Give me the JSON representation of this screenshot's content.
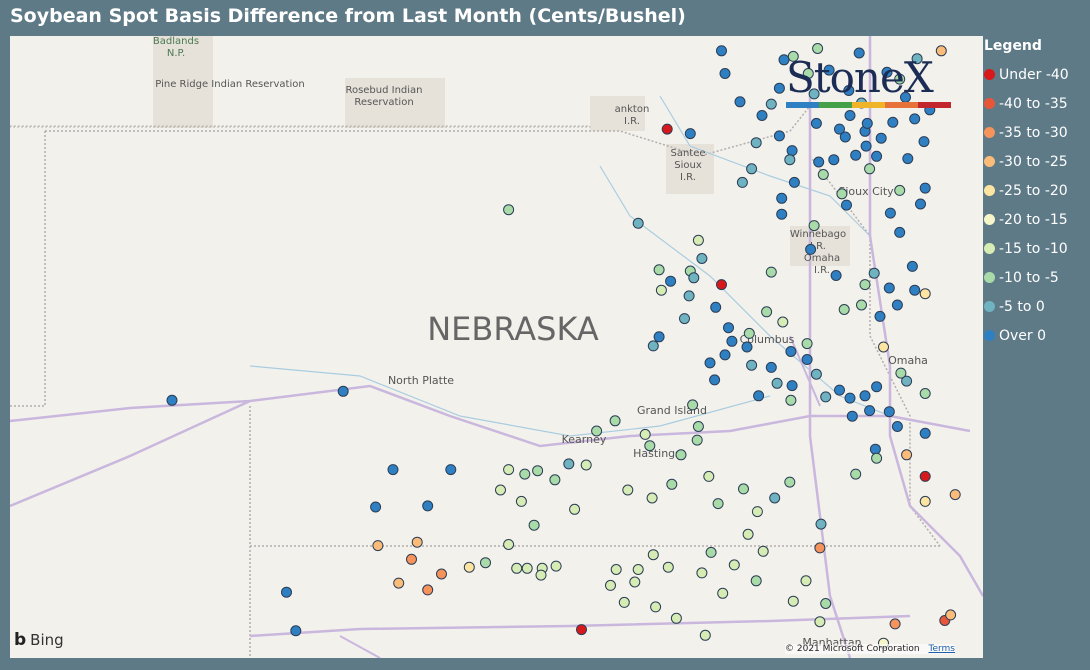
{
  "title": "Soybean Spot Basis Difference from Last Month (Cents/Bushel)",
  "legend": {
    "title": "Legend",
    "items": [
      {
        "label": "Under -40",
        "color": "#d7191c"
      },
      {
        "label": "-40 to -35",
        "color": "#e8563a"
      },
      {
        "label": "-35 to -30",
        "color": "#f5935b"
      },
      {
        "label": "-30 to -25",
        "color": "#fbbc79"
      },
      {
        "label": "-25 to -20",
        "color": "#fde4a1"
      },
      {
        "label": "-20 to -15",
        "color": "#f7f6c8"
      },
      {
        "label": "-15 to -10",
        "color": "#d6ecb4"
      },
      {
        "label": "-10 to -5",
        "color": "#a9dba8"
      },
      {
        "label": "-5 to 0",
        "color": "#6fb2c0"
      },
      {
        "label": "Over 0",
        "color": "#2f80c2"
      }
    ]
  },
  "logo": {
    "text": "StoneX",
    "bar_colors": [
      "#2f80c2",
      "#45a04a",
      "#f0b429",
      "#e8733a",
      "#c1272d"
    ]
  },
  "map": {
    "state_label": "NEBRASKA",
    "places": [
      {
        "name": "Badlands N.P.",
        "lines": [
          "Badlands",
          "N.P."
        ]
      },
      {
        "name": "Pine Ridge Indian Reservation",
        "lines": [
          "Pine Ridge Indian Reservation"
        ]
      },
      {
        "name": "Rosebud Indian Reservation",
        "lines": [
          "Rosebud Indian",
          "Reservation"
        ]
      },
      {
        "name": "Yankton I.R.",
        "lines": [
          "ankton",
          "I.R."
        ]
      },
      {
        "name": "Santee Sioux I.R.",
        "lines": [
          "Santee",
          "Sioux",
          "I.R."
        ]
      },
      {
        "name": "Sioux City",
        "lines": [
          "Sioux City"
        ]
      },
      {
        "name": "Winnebago I.R.",
        "lines": [
          "Winnebago",
          "I.R."
        ]
      },
      {
        "name": "Omaha I.R.",
        "lines": [
          "Omaha",
          "I.R."
        ]
      },
      {
        "name": "Columbus",
        "lines": [
          "Columbus"
        ]
      },
      {
        "name": "Omaha",
        "lines": [
          "Omaha"
        ]
      },
      {
        "name": "North Platte",
        "lines": [
          "North Platte"
        ]
      },
      {
        "name": "Grand Island",
        "lines": [
          "Grand Island"
        ]
      },
      {
        "name": "Kearney",
        "lines": [
          "Kearney"
        ]
      },
      {
        "name": "Hastings",
        "lines": [
          "Hastings"
        ]
      },
      {
        "name": "Manhattan",
        "lines": [
          "Manhattan"
        ]
      }
    ],
    "attribution": "© 2021 Microsoft Corporation",
    "terms": "Terms",
    "bing": "Bing"
  },
  "points": [
    {
      "cat": 9,
      "lat": 43.9,
      "lon": -96.9
    },
    {
      "cat": 9,
      "lat": 43.7,
      "lon": -96.87
    },
    {
      "cat": 9,
      "lat": 43.82,
      "lon": -96.36
    },
    {
      "cat": 8,
      "lat": 43.52,
      "lon": -96.1
    },
    {
      "cat": 0,
      "lat": 43.21,
      "lon": -97.37
    },
    {
      "cat": 9,
      "lat": 43.17,
      "lon": -97.17
    },
    {
      "cat": 8,
      "lat": 43.09,
      "lon": -96.6
    },
    {
      "cat": 9,
      "lat": 43.02,
      "lon": -96.29
    },
    {
      "cat": 8,
      "lat": 42.86,
      "lon": -96.64
    },
    {
      "cat": 7,
      "lat": 42.81,
      "lon": -96.02
    },
    {
      "cat": 8,
      "lat": 42.74,
      "lon": -96.72
    },
    {
      "cat": 7,
      "lat": 42.5,
      "lon": -98.74
    },
    {
      "cat": 8,
      "lat": 42.38,
      "lon": -97.62
    },
    {
      "cat": 9,
      "lat": 42.46,
      "lon": -96.38
    },
    {
      "cat": 7,
      "lat": 42.36,
      "lon": -96.1
    },
    {
      "cat": 9,
      "lat": 42.54,
      "lon": -95.82
    },
    {
      "cat": 6,
      "lat": 42.23,
      "lon": -97.1
    },
    {
      "cat": 9,
      "lat": 42.15,
      "lon": -96.13
    },
    {
      "cat": 7,
      "lat": 41.97,
      "lon": -97.44
    },
    {
      "cat": 7,
      "lat": 41.96,
      "lon": -97.17
    },
    {
      "cat": 0,
      "lat": 41.84,
      "lon": -96.9
    },
    {
      "cat": 6,
      "lat": 41.79,
      "lon": -97.42
    },
    {
      "cat": 8,
      "lat": 41.74,
      "lon": -97.18
    },
    {
      "cat": 7,
      "lat": 41.95,
      "lon": -96.47
    },
    {
      "cat": 9,
      "lat": 41.92,
      "lon": -95.91
    },
    {
      "cat": 9,
      "lat": 41.64,
      "lon": -96.95
    },
    {
      "cat": 8,
      "lat": 41.54,
      "lon": -97.22
    },
    {
      "cat": 7,
      "lat": 41.6,
      "lon": -96.51
    },
    {
      "cat": 6,
      "lat": 41.51,
      "lon": -96.37
    },
    {
      "cat": 9,
      "lat": 41.46,
      "lon": -96.84
    },
    {
      "cat": 9,
      "lat": 41.38,
      "lon": -97.44
    },
    {
      "cat": 8,
      "lat": 41.3,
      "lon": -97.49
    },
    {
      "cat": 9,
      "lat": 41.34,
      "lon": -96.81
    },
    {
      "cat": 9,
      "lat": 41.29,
      "lon": -96.68
    },
    {
      "cat": 7,
      "lat": 41.41,
      "lon": -96.66
    },
    {
      "cat": 9,
      "lat": 41.22,
      "lon": -96.87
    },
    {
      "cat": 9,
      "lat": 41.15,
      "lon": -97.0
    },
    {
      "cat": 8,
      "lat": 41.13,
      "lon": -96.64
    },
    {
      "cat": 9,
      "lat": 41.11,
      "lon": -96.47
    },
    {
      "cat": 9,
      "lat": 41.0,
      "lon": -96.96
    },
    {
      "cat": 8,
      "lat": 40.97,
      "lon": -96.42
    },
    {
      "cat": 9,
      "lat": 40.95,
      "lon": -96.29
    },
    {
      "cat": 9,
      "lat": 41.25,
      "lon": -96.3
    },
    {
      "cat": 7,
      "lat": 41.32,
      "lon": -96.16
    },
    {
      "cat": 9,
      "lat": 41.18,
      "lon": -96.16
    },
    {
      "cat": 8,
      "lat": 41.05,
      "lon": -96.08
    },
    {
      "cat": 9,
      "lat": 40.86,
      "lon": -96.58
    },
    {
      "cat": 7,
      "lat": 40.82,
      "lon": -96.3
    },
    {
      "cat": 8,
      "lat": 40.85,
      "lon": -96.0
    },
    {
      "cat": 9,
      "lat": 40.91,
      "lon": -95.88
    },
    {
      "cat": 9,
      "lat": 40.84,
      "lon": -95.79
    },
    {
      "cat": 9,
      "lat": 40.86,
      "lon": -95.66
    },
    {
      "cat": 9,
      "lat": 40.94,
      "lon": -95.56
    },
    {
      "cat": 9,
      "lat": 40.73,
      "lon": -95.62
    },
    {
      "cat": 9,
      "lat": 40.68,
      "lon": -95.77
    },
    {
      "cat": 9,
      "lat": 40.72,
      "lon": -95.45
    },
    {
      "cat": 9,
      "lat": 40.59,
      "lon": -95.38
    },
    {
      "cat": 9,
      "lat": 40.53,
      "lon": -95.14
    },
    {
      "cat": 9,
      "lat": 40.39,
      "lon": -95.57
    },
    {
      "cat": 8,
      "lat": 40.99,
      "lon": -95.3
    },
    {
      "cat": 7,
      "lat": 40.78,
      "lon": -97.15
    },
    {
      "cat": 7,
      "lat": 40.64,
      "lon": -97.82
    },
    {
      "cat": 7,
      "lat": 40.55,
      "lon": -97.98
    },
    {
      "cat": 6,
      "lat": 40.52,
      "lon": -97.56
    },
    {
      "cat": 7,
      "lat": 40.59,
      "lon": -97.1
    },
    {
      "cat": 7,
      "lat": 40.47,
      "lon": -97.11
    },
    {
      "cat": 7,
      "lat": 40.42,
      "lon": -97.52
    },
    {
      "cat": 7,
      "lat": 40.2,
      "lon": -98.49
    },
    {
      "cat": 7,
      "lat": 40.12,
      "lon": -98.34
    },
    {
      "cat": 6,
      "lat": 40.25,
      "lon": -98.07
    },
    {
      "cat": 6,
      "lat": 40.21,
      "lon": -98.74
    },
    {
      "cat": 7,
      "lat": 40.17,
      "lon": -98.6
    },
    {
      "cat": 6,
      "lat": 40.03,
      "lon": -98.81
    },
    {
      "cat": 6,
      "lat": 39.93,
      "lon": -98.63
    },
    {
      "cat": 7,
      "lat": 39.72,
      "lon": -98.52
    },
    {
      "cat": 6,
      "lat": 39.86,
      "lon": -98.17
    },
    {
      "cat": 6,
      "lat": 40.03,
      "lon": -97.71
    },
    {
      "cat": 6,
      "lat": 39.96,
      "lon": -97.5
    },
    {
      "cat": 7,
      "lat": 40.08,
      "lon": -97.33
    },
    {
      "cat": 6,
      "lat": 40.15,
      "lon": -97.01
    },
    {
      "cat": 7,
      "lat": 40.04,
      "lon": -96.71
    },
    {
      "cat": 7,
      "lat": 40.34,
      "lon": -97.25
    },
    {
      "cat": 7,
      "lat": 39.91,
      "lon": -96.93
    },
    {
      "cat": 6,
      "lat": 39.84,
      "lon": -96.59
    },
    {
      "cat": 8,
      "lat": 39.96,
      "lon": -96.44
    },
    {
      "cat": 7,
      "lat": 40.1,
      "lon": -96.31
    },
    {
      "cat": 8,
      "lat": 39.73,
      "lon": -96.04
    },
    {
      "cat": 6,
      "lat": 39.64,
      "lon": -96.67
    },
    {
      "cat": 6,
      "lat": 39.49,
      "lon": -96.54
    },
    {
      "cat": 7,
      "lat": 39.48,
      "lon": -96.99
    },
    {
      "cat": 6,
      "lat": 39.37,
      "lon": -96.79
    },
    {
      "cat": 6,
      "lat": 39.3,
      "lon": -97.07
    },
    {
      "cat": 6,
      "lat": 39.35,
      "lon": -97.36
    },
    {
      "cat": 6,
      "lat": 39.46,
      "lon": -97.49
    },
    {
      "cat": 6,
      "lat": 39.33,
      "lon": -97.62
    },
    {
      "cat": 6,
      "lat": 39.33,
      "lon": -97.81
    },
    {
      "cat": 6,
      "lat": 39.22,
      "lon": -97.65
    },
    {
      "cat": 6,
      "lat": 39.19,
      "lon": -97.86
    },
    {
      "cat": 6,
      "lat": 39.04,
      "lon": -97.74
    },
    {
      "cat": 6,
      "lat": 39.0,
      "lon": -97.47
    },
    {
      "cat": 6,
      "lat": 38.9,
      "lon": -97.29
    },
    {
      "cat": 6,
      "lat": 38.75,
      "lon": -97.04
    },
    {
      "cat": 6,
      "lat": 39.12,
      "lon": -96.89
    },
    {
      "cat": 7,
      "lat": 39.23,
      "lon": -96.6
    },
    {
      "cat": 6,
      "lat": 39.05,
      "lon": -96.28
    },
    {
      "cat": 6,
      "lat": 39.23,
      "lon": -96.17
    },
    {
      "cat": 7,
      "lat": 39.03,
      "lon": -96.0
    },
    {
      "cat": 6,
      "lat": 38.87,
      "lon": -96.05
    },
    {
      "cat": 6,
      "lat": 39.36,
      "lon": -98.33
    },
    {
      "cat": 6,
      "lat": 39.34,
      "lon": -98.45
    },
    {
      "cat": 6,
      "lat": 39.34,
      "lon": -98.58
    },
    {
      "cat": 6,
      "lat": 39.34,
      "lon": -98.67
    },
    {
      "cat": 6,
      "lat": 39.28,
      "lon": -98.46
    },
    {
      "cat": 6,
      "lat": 39.55,
      "lon": -98.74
    },
    {
      "cat": 7,
      "lat": 39.39,
      "lon": -98.94
    },
    {
      "cat": 2,
      "lat": 38.85,
      "lon": -95.4
    },
    {
      "cat": 5,
      "lat": 38.68,
      "lon": -95.5
    },
    {
      "cat": 2,
      "lat": 39.52,
      "lon": -96.05
    },
    {
      "cat": 1,
      "lat": 38.88,
      "lon": -94.97
    },
    {
      "cat": 3,
      "lat": 38.93,
      "lon": -94.92
    },
    {
      "cat": 0,
      "lat": 40.15,
      "lon": -95.14
    },
    {
      "cat": 3,
      "lat": 39.54,
      "lon": -99.87
    },
    {
      "cat": 3,
      "lat": 39.57,
      "lon": -99.53
    },
    {
      "cat": 2,
      "lat": 39.42,
      "lon": -99.58
    },
    {
      "cat": 2,
      "lat": 39.29,
      "lon": -99.32
    },
    {
      "cat": 3,
      "lat": 39.21,
      "lon": -99.69
    },
    {
      "cat": 2,
      "lat": 39.15,
      "lon": -99.44
    },
    {
      "cat": 4,
      "lat": 39.35,
      "lon": -99.08
    },
    {
      "cat": 9,
      "lat": 39.89,
      "lon": -99.44
    },
    {
      "cat": 9,
      "lat": 39.13,
      "lon": -100.66
    },
    {
      "cat": 9,
      "lat": 39.88,
      "lon": -99.89
    },
    {
      "cat": 9,
      "lat": 40.21,
      "lon": -99.74
    },
    {
      "cat": 9,
      "lat": 40.21,
      "lon": -99.24
    },
    {
      "cat": 8,
      "lat": 40.26,
      "lon": -98.22
    },
    {
      "cat": 9,
      "lat": 40.9,
      "lon": -100.17
    },
    {
      "cat": 9,
      "lat": 40.82,
      "lon": -101.65
    },
    {
      "cat": 9,
      "lat": 38.79,
      "lon": -100.58
    },
    {
      "cat": 0,
      "lat": 38.8,
      "lon": -98.11
    },
    {
      "cat": 3,
      "lat": 39.99,
      "lon": -94.88
    },
    {
      "cat": 4,
      "lat": 39.93,
      "lon": -95.14
    },
    {
      "cat": 3,
      "lat": 40.34,
      "lon": -95.3
    },
    {
      "cat": 7,
      "lat": 40.31,
      "lon": -95.56
    },
    {
      "cat": 7,
      "lat": 40.17,
      "lon": -95.74
    },
    {
      "cat": 4,
      "lat": 41.76,
      "lon": -95.14
    },
    {
      "cat": 4,
      "lat": 41.29,
      "lon": -95.5
    },
    {
      "cat": 7,
      "lat": 41.06,
      "lon": -95.35
    },
    {
      "cat": 7,
      "lat": 40.88,
      "lon": -95.14
    },
    {
      "cat": 9,
      "lat": 41.56,
      "lon": -95.53
    },
    {
      "cat": 9,
      "lat": 41.66,
      "lon": -95.38
    },
    {
      "cat": 9,
      "lat": 41.79,
      "lon": -95.23
    },
    {
      "cat": 9,
      "lat": 42.0,
      "lon": -95.25
    },
    {
      "cat": 9,
      "lat": 41.81,
      "lon": -95.45
    },
    {
      "cat": 8,
      "lat": 41.94,
      "lon": -95.58
    },
    {
      "cat": 7,
      "lat": 41.84,
      "lon": -95.66
    },
    {
      "cat": 7,
      "lat": 41.66,
      "lon": -95.69
    },
    {
      "cat": 7,
      "lat": 41.62,
      "lon": -95.84
    },
    {
      "cat": 9,
      "lat": 42.3,
      "lon": -95.36
    },
    {
      "cat": 9,
      "lat": 42.47,
      "lon": -95.44
    },
    {
      "cat": 9,
      "lat": 42.55,
      "lon": -95.18
    },
    {
      "cat": 7,
      "lat": 42.67,
      "lon": -95.36
    },
    {
      "cat": 9,
      "lat": 42.69,
      "lon": -95.14
    },
    {
      "cat": 7,
      "lat": 42.86,
      "lon": -95.62
    },
    {
      "cat": 9,
      "lat": 42.95,
      "lon": -95.29
    },
    {
      "cat": 9,
      "lat": 43.1,
      "lon": -95.15
    },
    {
      "cat": 9,
      "lat": 43.3,
      "lon": -95.23
    },
    {
      "cat": 9,
      "lat": 43.38,
      "lon": -95.1
    },
    {
      "cat": 9,
      "lat": 43.49,
      "lon": -95.31
    },
    {
      "cat": 9,
      "lat": 43.27,
      "lon": -95.42
    },
    {
      "cat": 9,
      "lat": 43.19,
      "lon": -95.66
    },
    {
      "cat": 9,
      "lat": 43.13,
      "lon": -95.52
    },
    {
      "cat": 9,
      "lat": 42.98,
      "lon": -95.74
    },
    {
      "cat": 9,
      "lat": 42.94,
      "lon": -95.93
    },
    {
      "cat": 9,
      "lat": 42.97,
      "lon": -95.56
    },
    {
      "cat": 9,
      "lat": 43.21,
      "lon": -95.88
    },
    {
      "cat": 9,
      "lat": 43.26,
      "lon": -96.08
    },
    {
      "cat": 9,
      "lat": 43.33,
      "lon": -95.79
    },
    {
      "cat": 8,
      "lat": 43.44,
      "lon": -95.69
    },
    {
      "cat": 9,
      "lat": 43.55,
      "lon": -95.8
    },
    {
      "cat": 9,
      "lat": 43.73,
      "lon": -95.97
    },
    {
      "cat": 9,
      "lat": 43.88,
      "lon": -95.71
    },
    {
      "cat": 9,
      "lat": 43.71,
      "lon": -95.47
    },
    {
      "cat": 7,
      "lat": 43.65,
      "lon": -95.36
    },
    {
      "cat": 8,
      "lat": 43.83,
      "lon": -95.21
    },
    {
      "cat": 9,
      "lat": 43.57,
      "lon": -96.4
    },
    {
      "cat": 8,
      "lat": 43.43,
      "lon": -96.47
    },
    {
      "cat": 7,
      "lat": 43.85,
      "lon": -96.28
    },
    {
      "cat": 7,
      "lat": 43.92,
      "lon": -96.07
    },
    {
      "cat": 7,
      "lat": 43.7,
      "lon": -96.15
    },
    {
      "cat": 9,
      "lat": 43.45,
      "lon": -96.74
    },
    {
      "cat": 9,
      "lat": 43.33,
      "lon": -96.55
    },
    {
      "cat": 9,
      "lat": 43.15,
      "lon": -96.4
    },
    {
      "cat": 8,
      "lat": 42.94,
      "lon": -96.31
    },
    {
      "cat": 9,
      "lat": 42.92,
      "lon": -96.06
    },
    {
      "cat": 9,
      "lat": 42.74,
      "lon": -96.27
    },
    {
      "cat": 7,
      "lat": 42.64,
      "lon": -95.86
    },
    {
      "cat": 9,
      "lat": 42.6,
      "lon": -96.38
    },
    {
      "cat": 9,
      "lat": 43.26,
      "lon": -95.64
    },
    {
      "cat": 9,
      "lat": 43.14,
      "lon": -95.83
    },
    {
      "cat": 9,
      "lat": 43.06,
      "lon": -95.65
    },
    {
      "cat": 3,
      "lat": 43.9,
      "lon": -95.0
    },
    {
      "cat": 8,
      "lat": 42.07,
      "lon": -97.07
    },
    {
      "cat": 9,
      "lat": 41.87,
      "lon": -97.34
    },
    {
      "cat": 8,
      "lat": 41.9,
      "lon": -97.14
    }
  ]
}
